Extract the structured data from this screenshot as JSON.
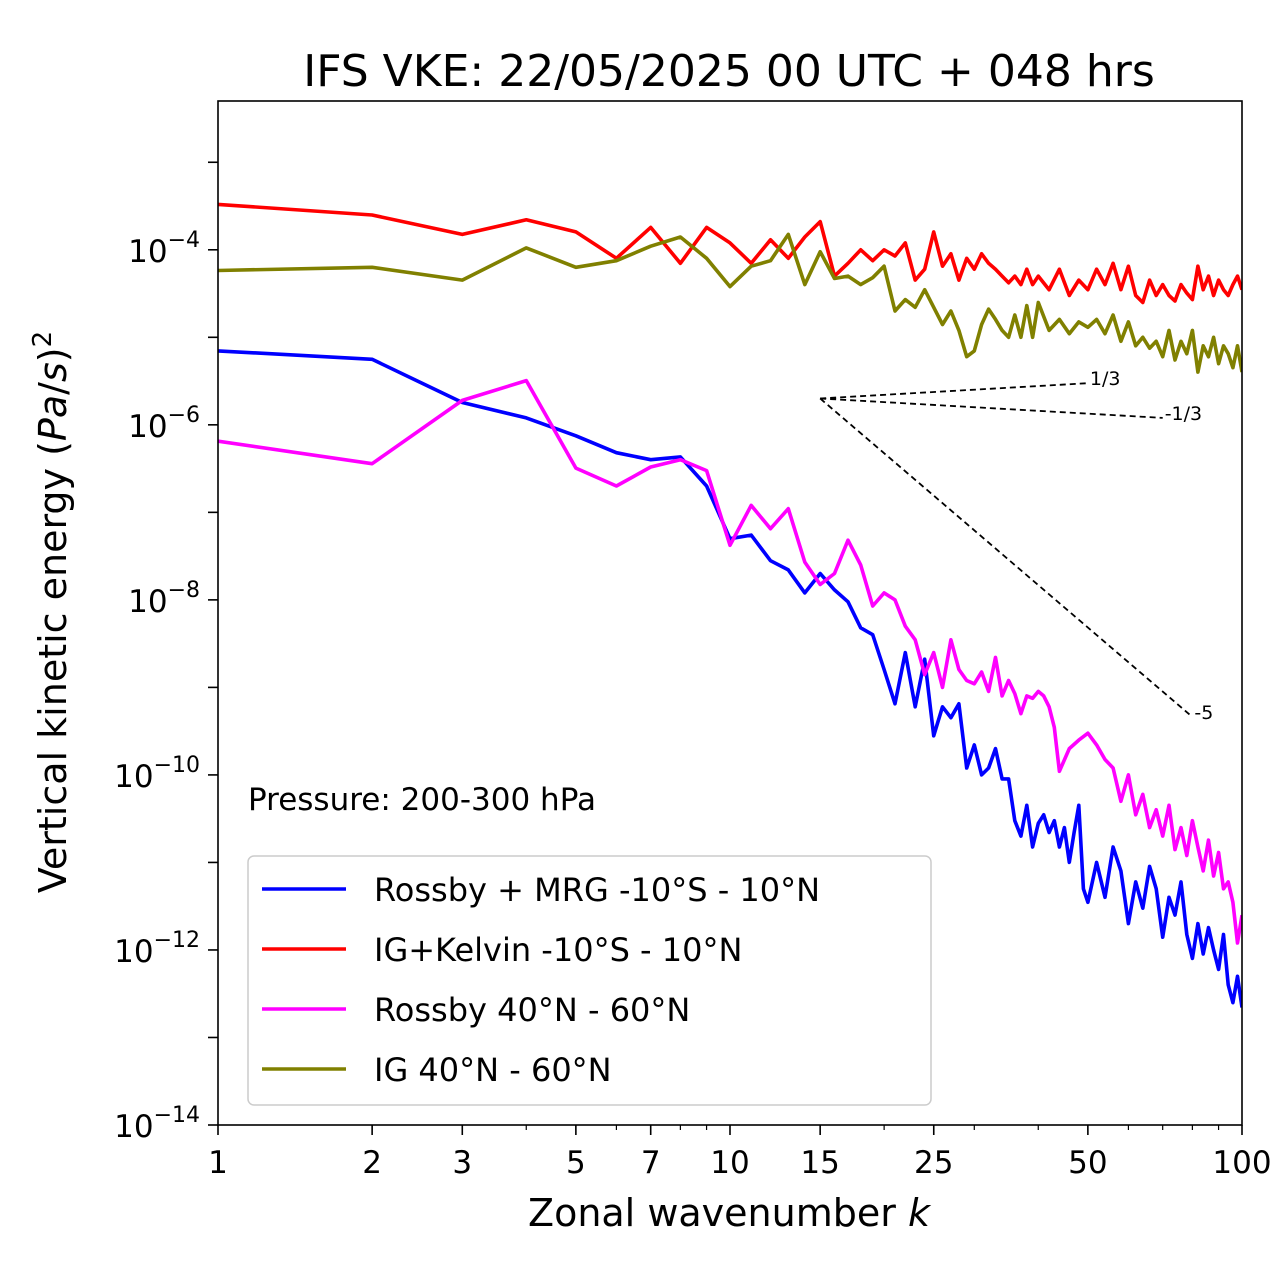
{
  "chart_data": {
    "type": "line",
    "title": "IFS VKE: 22/05/2025 00 UTC + 048 hrs",
    "xlabel": "Zonal wavenumber k",
    "ylabel": "Vertical kinetic energy (Pa/s)^2",
    "annotation": "Pressure: 200-300 hPa",
    "xscale": "log",
    "yscale": "log",
    "xlim": [
      1,
      100
    ],
    "ylim_exp": [
      -14,
      -2.3
    ],
    "xticks": [
      1,
      2,
      3,
      5,
      7,
      10,
      15,
      25,
      50,
      100
    ],
    "yticks_exp": [
      -4,
      -6,
      -8,
      -10,
      -12,
      -14
    ],
    "grid": false,
    "legend_placement": "lower-left",
    "reference_lines": [
      {
        "label": "1/3",
        "from": [
          15,
          2e-06
        ],
        "to": [
          50,
          2.99e-06
        ]
      },
      {
        "label": "-1/3",
        "from": [
          15,
          2e-06
        ],
        "to": [
          70,
          1.2e-06
        ]
      },
      {
        "label": "-5",
        "from": [
          15,
          2e-06
        ],
        "to": [
          80,
          4.6e-10
        ]
      }
    ],
    "series": [
      {
        "name": "Rossby + MRG -10°S - 10°N",
        "color": "#0000ff",
        "points": [
          [
            1,
            7e-06
          ],
          [
            2,
            5.6e-06
          ],
          [
            3,
            1.8e-06
          ],
          [
            4,
            1.2e-06
          ],
          [
            5,
            7.5e-07
          ],
          [
            6,
            4.8e-07
          ],
          [
            7,
            4e-07
          ],
          [
            8,
            4.3e-07
          ],
          [
            9,
            2e-07
          ],
          [
            10,
            5e-08
          ],
          [
            11,
            5.5e-08
          ],
          [
            12,
            2.8e-08
          ],
          [
            13,
            2.2e-08
          ],
          [
            14,
            1.2e-08
          ],
          [
            15,
            2e-08
          ],
          [
            16,
            1.3e-08
          ],
          [
            17,
            9.5e-09
          ],
          [
            18,
            4.8e-09
          ],
          [
            19,
            4e-09
          ],
          [
            20,
            1.6e-09
          ],
          [
            21,
            6.5e-10
          ],
          [
            22,
            2.5e-09
          ],
          [
            23,
            6e-10
          ],
          [
            24,
            2.1e-09
          ],
          [
            25,
            2.8e-10
          ],
          [
            26,
            6e-10
          ],
          [
            27,
            4.5e-10
          ],
          [
            28,
            6.5e-10
          ],
          [
            29,
            1.2e-10
          ],
          [
            30,
            2.2e-10
          ],
          [
            31,
            1e-10
          ],
          [
            32,
            1.2e-10
          ],
          [
            33,
            2e-10
          ],
          [
            34,
            9e-11
          ],
          [
            35,
            9e-11
          ],
          [
            36,
            3e-11
          ],
          [
            37,
            2e-11
          ],
          [
            38,
            4.5e-11
          ],
          [
            39,
            1.5e-11
          ],
          [
            40,
            2.8e-11
          ],
          [
            41,
            3.5e-11
          ],
          [
            42,
            2.2e-11
          ],
          [
            43,
            3e-11
          ],
          [
            44,
            1.5e-11
          ],
          [
            45,
            2.5e-11
          ],
          [
            46,
            1e-11
          ],
          [
            47,
            2.2e-11
          ],
          [
            48,
            4.5e-11
          ],
          [
            49,
            5e-12
          ],
          [
            50,
            3.5e-12
          ],
          [
            52,
            1e-11
          ],
          [
            54,
            4e-12
          ],
          [
            56,
            1.5e-11
          ],
          [
            58,
            8e-12
          ],
          [
            60,
            2e-12
          ],
          [
            62,
            6e-12
          ],
          [
            64,
            3e-12
          ],
          [
            66,
            9e-12
          ],
          [
            68,
            5e-12
          ],
          [
            70,
            1.4e-12
          ],
          [
            72,
            4e-12
          ],
          [
            74,
            2.5e-12
          ],
          [
            76,
            6e-12
          ],
          [
            78,
            1.5e-12
          ],
          [
            80,
            8e-13
          ],
          [
            82,
            2e-12
          ],
          [
            84,
            9e-13
          ],
          [
            86,
            1.8e-12
          ],
          [
            88,
            1e-12
          ],
          [
            90,
            6e-13
          ],
          [
            92,
            1.5e-12
          ],
          [
            94,
            4e-13
          ],
          [
            96,
            2.5e-13
          ],
          [
            98,
            5e-13
          ],
          [
            100,
            2.2e-13
          ]
        ]
      },
      {
        "name": "IG+Kelvin -10°S - 10°N",
        "color": "#ff0000",
        "points": [
          [
            1,
            0.00033
          ],
          [
            2,
            0.00025
          ],
          [
            3,
            0.00015
          ],
          [
            4,
            0.00022
          ],
          [
            5,
            0.00016
          ],
          [
            6,
            8e-05
          ],
          [
            7,
            0.00018
          ],
          [
            8,
            7e-05
          ],
          [
            9,
            0.00018
          ],
          [
            10,
            0.00012
          ],
          [
            11,
            7e-05
          ],
          [
            12,
            0.00013
          ],
          [
            13,
            8e-05
          ],
          [
            14,
            0.00014
          ],
          [
            15,
            0.00021
          ],
          [
            16,
            5e-05
          ],
          [
            17,
            7e-05
          ],
          [
            18,
            0.0001
          ],
          [
            19,
            7.5e-05
          ],
          [
            20,
            0.0001
          ],
          [
            21,
            8.5e-05
          ],
          [
            22,
            0.00012
          ],
          [
            23,
            4.5e-05
          ],
          [
            24,
            6e-05
          ],
          [
            25,
            0.00016
          ],
          [
            26,
            6.5e-05
          ],
          [
            27,
            9e-05
          ],
          [
            28,
            4.5e-05
          ],
          [
            29,
            8e-05
          ],
          [
            30,
            6e-05
          ],
          [
            31,
            9e-05
          ],
          [
            32,
            7e-05
          ],
          [
            33,
            6e-05
          ],
          [
            34,
            5e-05
          ],
          [
            35,
            4.2e-05
          ],
          [
            36,
            5e-05
          ],
          [
            37,
            4e-05
          ],
          [
            38,
            6e-05
          ],
          [
            39,
            4e-05
          ],
          [
            40,
            5e-05
          ],
          [
            42,
            3.5e-05
          ],
          [
            44,
            6e-05
          ],
          [
            46,
            3e-05
          ],
          [
            48,
            4.5e-05
          ],
          [
            50,
            3.5e-05
          ],
          [
            52,
            6e-05
          ],
          [
            54,
            4e-05
          ],
          [
            56,
            7e-05
          ],
          [
            58,
            3.5e-05
          ],
          [
            60,
            6.5e-05
          ],
          [
            62,
            3e-05
          ],
          [
            64,
            2.5e-05
          ],
          [
            66,
            4.5e-05
          ],
          [
            68,
            3e-05
          ],
          [
            70,
            4e-05
          ],
          [
            72,
            3e-05
          ],
          [
            74,
            2.6e-05
          ],
          [
            76,
            4e-05
          ],
          [
            78,
            3.2e-05
          ],
          [
            80,
            2.7e-05
          ],
          [
            82,
            6.5e-05
          ],
          [
            84,
            3.5e-05
          ],
          [
            86,
            5e-05
          ],
          [
            88,
            3e-05
          ],
          [
            90,
            4.5e-05
          ],
          [
            92,
            3.5e-05
          ],
          [
            94,
            3e-05
          ],
          [
            96,
            4e-05
          ],
          [
            98,
            5e-05
          ],
          [
            100,
            3.5e-05
          ]
        ]
      },
      {
        "name": "Rossby 40°N - 60°N",
        "color": "#ff00ff",
        "points": [
          [
            1,
            6.5e-07
          ],
          [
            2,
            3.6e-07
          ],
          [
            3,
            1.9e-06
          ],
          [
            4,
            3.2e-06
          ],
          [
            5,
            3.2e-07
          ],
          [
            6,
            2e-07
          ],
          [
            7,
            3.3e-07
          ],
          [
            8,
            4e-07
          ],
          [
            9,
            3e-07
          ],
          [
            10,
            4.2e-08
          ],
          [
            11,
            1.2e-07
          ],
          [
            12,
            6.5e-08
          ],
          [
            13,
            1.1e-07
          ],
          [
            14,
            2.7e-08
          ],
          [
            15,
            1.5e-08
          ],
          [
            16,
            2e-08
          ],
          [
            17,
            4.8e-08
          ],
          [
            18,
            2.5e-08
          ],
          [
            19,
            8.5e-09
          ],
          [
            20,
            1.2e-08
          ],
          [
            21,
            1e-08
          ],
          [
            22,
            5e-09
          ],
          [
            23,
            3.5e-09
          ],
          [
            24,
            1.4e-09
          ],
          [
            25,
            2.5e-09
          ],
          [
            26,
            1e-09
          ],
          [
            27,
            3.5e-09
          ],
          [
            28,
            1.6e-09
          ],
          [
            29,
            1.2e-09
          ],
          [
            30,
            1.1e-09
          ],
          [
            31,
            1.5e-09
          ],
          [
            32,
            9e-10
          ],
          [
            33,
            2.2e-09
          ],
          [
            34,
            8e-10
          ],
          [
            35,
            1.2e-09
          ],
          [
            36,
            8.5e-10
          ],
          [
            37,
            5e-10
          ],
          [
            38,
            8e-10
          ],
          [
            39,
            7.5e-10
          ],
          [
            40,
            9e-10
          ],
          [
            41,
            8e-10
          ],
          [
            42,
            6e-10
          ],
          [
            43,
            3.5e-10
          ],
          [
            44,
            1.1e-10
          ],
          [
            46,
            2e-10
          ],
          [
            48,
            2.5e-10
          ],
          [
            50,
            3e-10
          ],
          [
            52,
            2.2e-10
          ],
          [
            54,
            1.5e-10
          ],
          [
            56,
            1.2e-10
          ],
          [
            58,
            5e-11
          ],
          [
            60,
            1e-10
          ],
          [
            62,
            3.5e-11
          ],
          [
            64,
            6e-11
          ],
          [
            66,
            2.5e-11
          ],
          [
            68,
            4e-11
          ],
          [
            70,
            2e-11
          ],
          [
            72,
            4.5e-11
          ],
          [
            74,
            1.4e-11
          ],
          [
            76,
            2.5e-11
          ],
          [
            78,
            1.2e-11
          ],
          [
            80,
            3e-11
          ],
          [
            82,
            1.5e-11
          ],
          [
            84,
            8e-12
          ],
          [
            86,
            1.8e-11
          ],
          [
            88,
            7e-12
          ],
          [
            90,
            1.3e-11
          ],
          [
            92,
            5e-12
          ],
          [
            94,
            6e-12
          ],
          [
            96,
            3.5e-12
          ],
          [
            98,
            1.2e-12
          ],
          [
            100,
            2.5e-12
          ]
        ]
      },
      {
        "name": "IG 40°N - 60°N",
        "color": "#808000",
        "points": [
          [
            1,
            5.8e-05
          ],
          [
            2,
            6.3e-05
          ],
          [
            3,
            4.5e-05
          ],
          [
            4,
            0.000105
          ],
          [
            5,
            6.3e-05
          ],
          [
            6,
            7.5e-05
          ],
          [
            7,
            0.00011
          ],
          [
            8,
            0.00014
          ],
          [
            9,
            8e-05
          ],
          [
            10,
            3.8e-05
          ],
          [
            11,
            6.5e-05
          ],
          [
            12,
            7.5e-05
          ],
          [
            13,
            0.00015
          ],
          [
            14,
            4e-05
          ],
          [
            15,
            9.5e-05
          ],
          [
            16,
            4.7e-05
          ],
          [
            17,
            5e-05
          ],
          [
            18,
            4e-05
          ],
          [
            19,
            4.8e-05
          ],
          [
            20,
            6.5e-05
          ],
          [
            21,
            2e-05
          ],
          [
            22,
            2.7e-05
          ],
          [
            23,
            2.2e-05
          ],
          [
            24,
            3.5e-05
          ],
          [
            25,
            2.2e-05
          ],
          [
            26,
            1.4e-05
          ],
          [
            27,
            2e-05
          ],
          [
            28,
            1.2e-05
          ],
          [
            29,
            6e-06
          ],
          [
            30,
            7e-06
          ],
          [
            31,
            1.4e-05
          ],
          [
            32,
            2.1e-05
          ],
          [
            33,
            1.6e-05
          ],
          [
            34,
            1.2e-05
          ],
          [
            35,
            1e-05
          ],
          [
            36,
            1.8e-05
          ],
          [
            37,
            1e-05
          ],
          [
            38,
            2.3e-05
          ],
          [
            39,
            1e-05
          ],
          [
            40,
            2.5e-05
          ],
          [
            42,
            1.2e-05
          ],
          [
            44,
            1.6e-05
          ],
          [
            46,
            1.1e-05
          ],
          [
            48,
            1.5e-05
          ],
          [
            50,
            1.3e-05
          ],
          [
            52,
            1.6e-05
          ],
          [
            54,
            1.1e-05
          ],
          [
            56,
            1.8e-05
          ],
          [
            58,
            9e-06
          ],
          [
            60,
            1.5e-05
          ],
          [
            62,
            8e-06
          ],
          [
            64,
            1e-05
          ],
          [
            66,
            7.5e-06
          ],
          [
            68,
            9e-06
          ],
          [
            70,
            6e-06
          ],
          [
            72,
            1.2e-05
          ],
          [
            74,
            5.5e-06
          ],
          [
            76,
            9e-06
          ],
          [
            78,
            6.5e-06
          ],
          [
            80,
            1.2e-05
          ],
          [
            82,
            4e-06
          ],
          [
            84,
            8e-06
          ],
          [
            86,
            6e-06
          ],
          [
            88,
            1e-05
          ],
          [
            90,
            5e-06
          ],
          [
            92,
            8e-06
          ],
          [
            94,
            6.5e-06
          ],
          [
            96,
            4.5e-06
          ],
          [
            98,
            8e-06
          ],
          [
            100,
            4e-06
          ]
        ]
      }
    ]
  }
}
